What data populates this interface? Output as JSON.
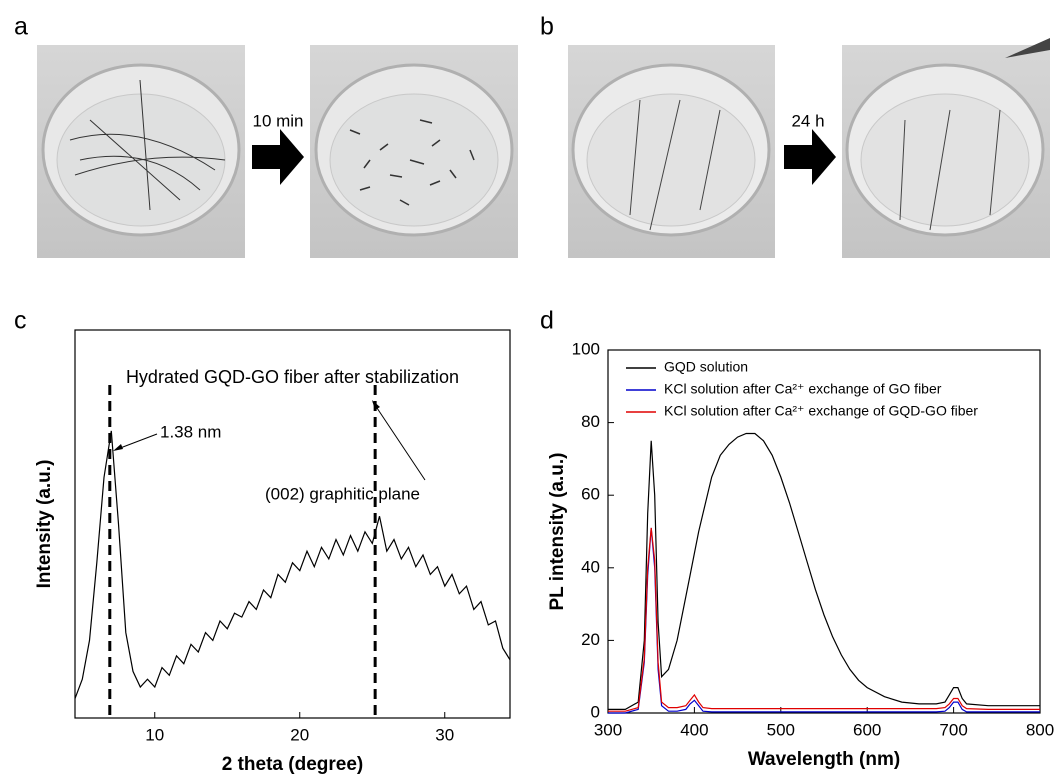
{
  "panel_labels": [
    "a",
    "b",
    "c",
    "d"
  ],
  "photo_steps": [
    "10 min",
    "24 h"
  ],
  "chart_data": [
    {
      "type": "line",
      "xlabel": "2 theta (degree)",
      "ylabel": "Intensity (a.u.)",
      "annotations": [
        "Hydrated GQD-GO fiber after stabilization",
        "1.38 nm",
        "(002) graphitic plane"
      ],
      "reference_lines": [
        6.9,
        25.2
      ],
      "xlim": [
        4.5,
        34.5
      ],
      "xticks": [
        10,
        20,
        30
      ],
      "ylim": [
        0,
        100
      ],
      "color": "#000000",
      "x": [
        4.5,
        5,
        5.5,
        6,
        6.5,
        7,
        7.5,
        8,
        8.5,
        9,
        9.5,
        10,
        10.5,
        11,
        11.5,
        12,
        12.5,
        13,
        13.5,
        14,
        14.5,
        15,
        15.5,
        16,
        16.5,
        17,
        17.5,
        18,
        18.5,
        19,
        19.5,
        20,
        20.5,
        21,
        21.5,
        22,
        22.5,
        23,
        23.5,
        24,
        24.5,
        25,
        25.5,
        26,
        26.5,
        27,
        27.5,
        28,
        28.5,
        29,
        29.5,
        30,
        30.5,
        31,
        31.5,
        32,
        32.5,
        33,
        33.5,
        34,
        34.5
      ],
      "values": [
        5,
        10,
        20,
        40,
        62,
        74,
        50,
        22,
        12,
        8,
        10,
        8,
        13,
        11,
        16,
        14,
        19,
        17,
        22,
        20,
        25,
        23,
        27,
        26,
        30,
        28,
        33,
        31,
        37,
        35,
        40,
        38,
        43,
        39,
        44,
        41,
        46,
        42,
        47,
        43,
        48,
        45,
        52,
        43,
        46,
        41,
        44,
        39,
        42,
        37,
        39,
        34,
        37,
        32,
        34,
        28,
        30,
        24,
        25,
        18,
        15
      ]
    },
    {
      "type": "line",
      "xlabel": "Wavelength (nm)",
      "ylabel": "PL intensity (a.u.)",
      "xlim": [
        300,
        800
      ],
      "xticks": [
        300,
        400,
        500,
        600,
        700,
        800
      ],
      "ylim": [
        0,
        100
      ],
      "yticks": [
        0,
        20,
        40,
        60,
        80,
        100
      ],
      "legend": "upper left",
      "x": [
        300,
        320,
        335,
        342,
        346,
        350,
        354,
        358,
        362,
        370,
        380,
        390,
        395,
        400,
        405,
        410,
        420,
        430,
        440,
        450,
        460,
        470,
        480,
        490,
        500,
        510,
        520,
        530,
        540,
        550,
        560,
        570,
        580,
        590,
        600,
        620,
        640,
        660,
        680,
        690,
        695,
        700,
        705,
        710,
        715,
        740,
        780,
        800
      ],
      "series": [
        {
          "name": "GQD solution",
          "color": "#000000",
          "values": [
            1,
            1,
            3,
            20,
            55,
            75,
            60,
            25,
            10,
            12,
            20,
            32,
            38,
            44,
            50,
            55,
            65,
            71,
            74,
            76,
            77,
            77,
            75,
            71,
            65,
            58,
            50,
            42,
            34,
            27,
            21,
            16,
            12,
            9,
            7,
            4.5,
            3,
            2.5,
            2.5,
            3,
            5,
            7,
            7,
            4,
            2.5,
            2,
            2,
            2
          ]
        },
        {
          "name": "KCl solution after Ca²⁺ exchange of GO fiber",
          "color": "#0000cc",
          "values": [
            0,
            0,
            1,
            14,
            38,
            51,
            40,
            12,
            2,
            0.5,
            0.5,
            1,
            2.5,
            3.5,
            2,
            0.5,
            0.3,
            0.3,
            0.3,
            0.3,
            0.3,
            0.3,
            0.3,
            0.3,
            0.3,
            0.3,
            0.3,
            0.3,
            0.3,
            0.3,
            0.3,
            0.3,
            0.3,
            0.3,
            0.3,
            0.3,
            0.3,
            0.3,
            0.3,
            0.5,
            1.5,
            3,
            3,
            1,
            0.3,
            0.3,
            0.3,
            0.3
          ]
        },
        {
          "name": "KCl solution after Ca²⁺ exchange of GQD-GO fiber",
          "color": "#e00000",
          "values": [
            0.5,
            0.5,
            1.5,
            15,
            40,
            51,
            42,
            14,
            3,
            1.5,
            1.5,
            2,
            3.5,
            5,
            3,
            1.5,
            1.2,
            1.2,
            1.2,
            1.2,
            1.2,
            1.2,
            1.2,
            1.2,
            1.2,
            1.2,
            1.2,
            1.2,
            1.2,
            1.2,
            1.2,
            1.2,
            1.2,
            1.2,
            1.2,
            1.2,
            1.2,
            1.2,
            1.2,
            1.5,
            2.5,
            4,
            4,
            2,
            1.2,
            1,
            1,
            1
          ]
        }
      ]
    }
  ]
}
